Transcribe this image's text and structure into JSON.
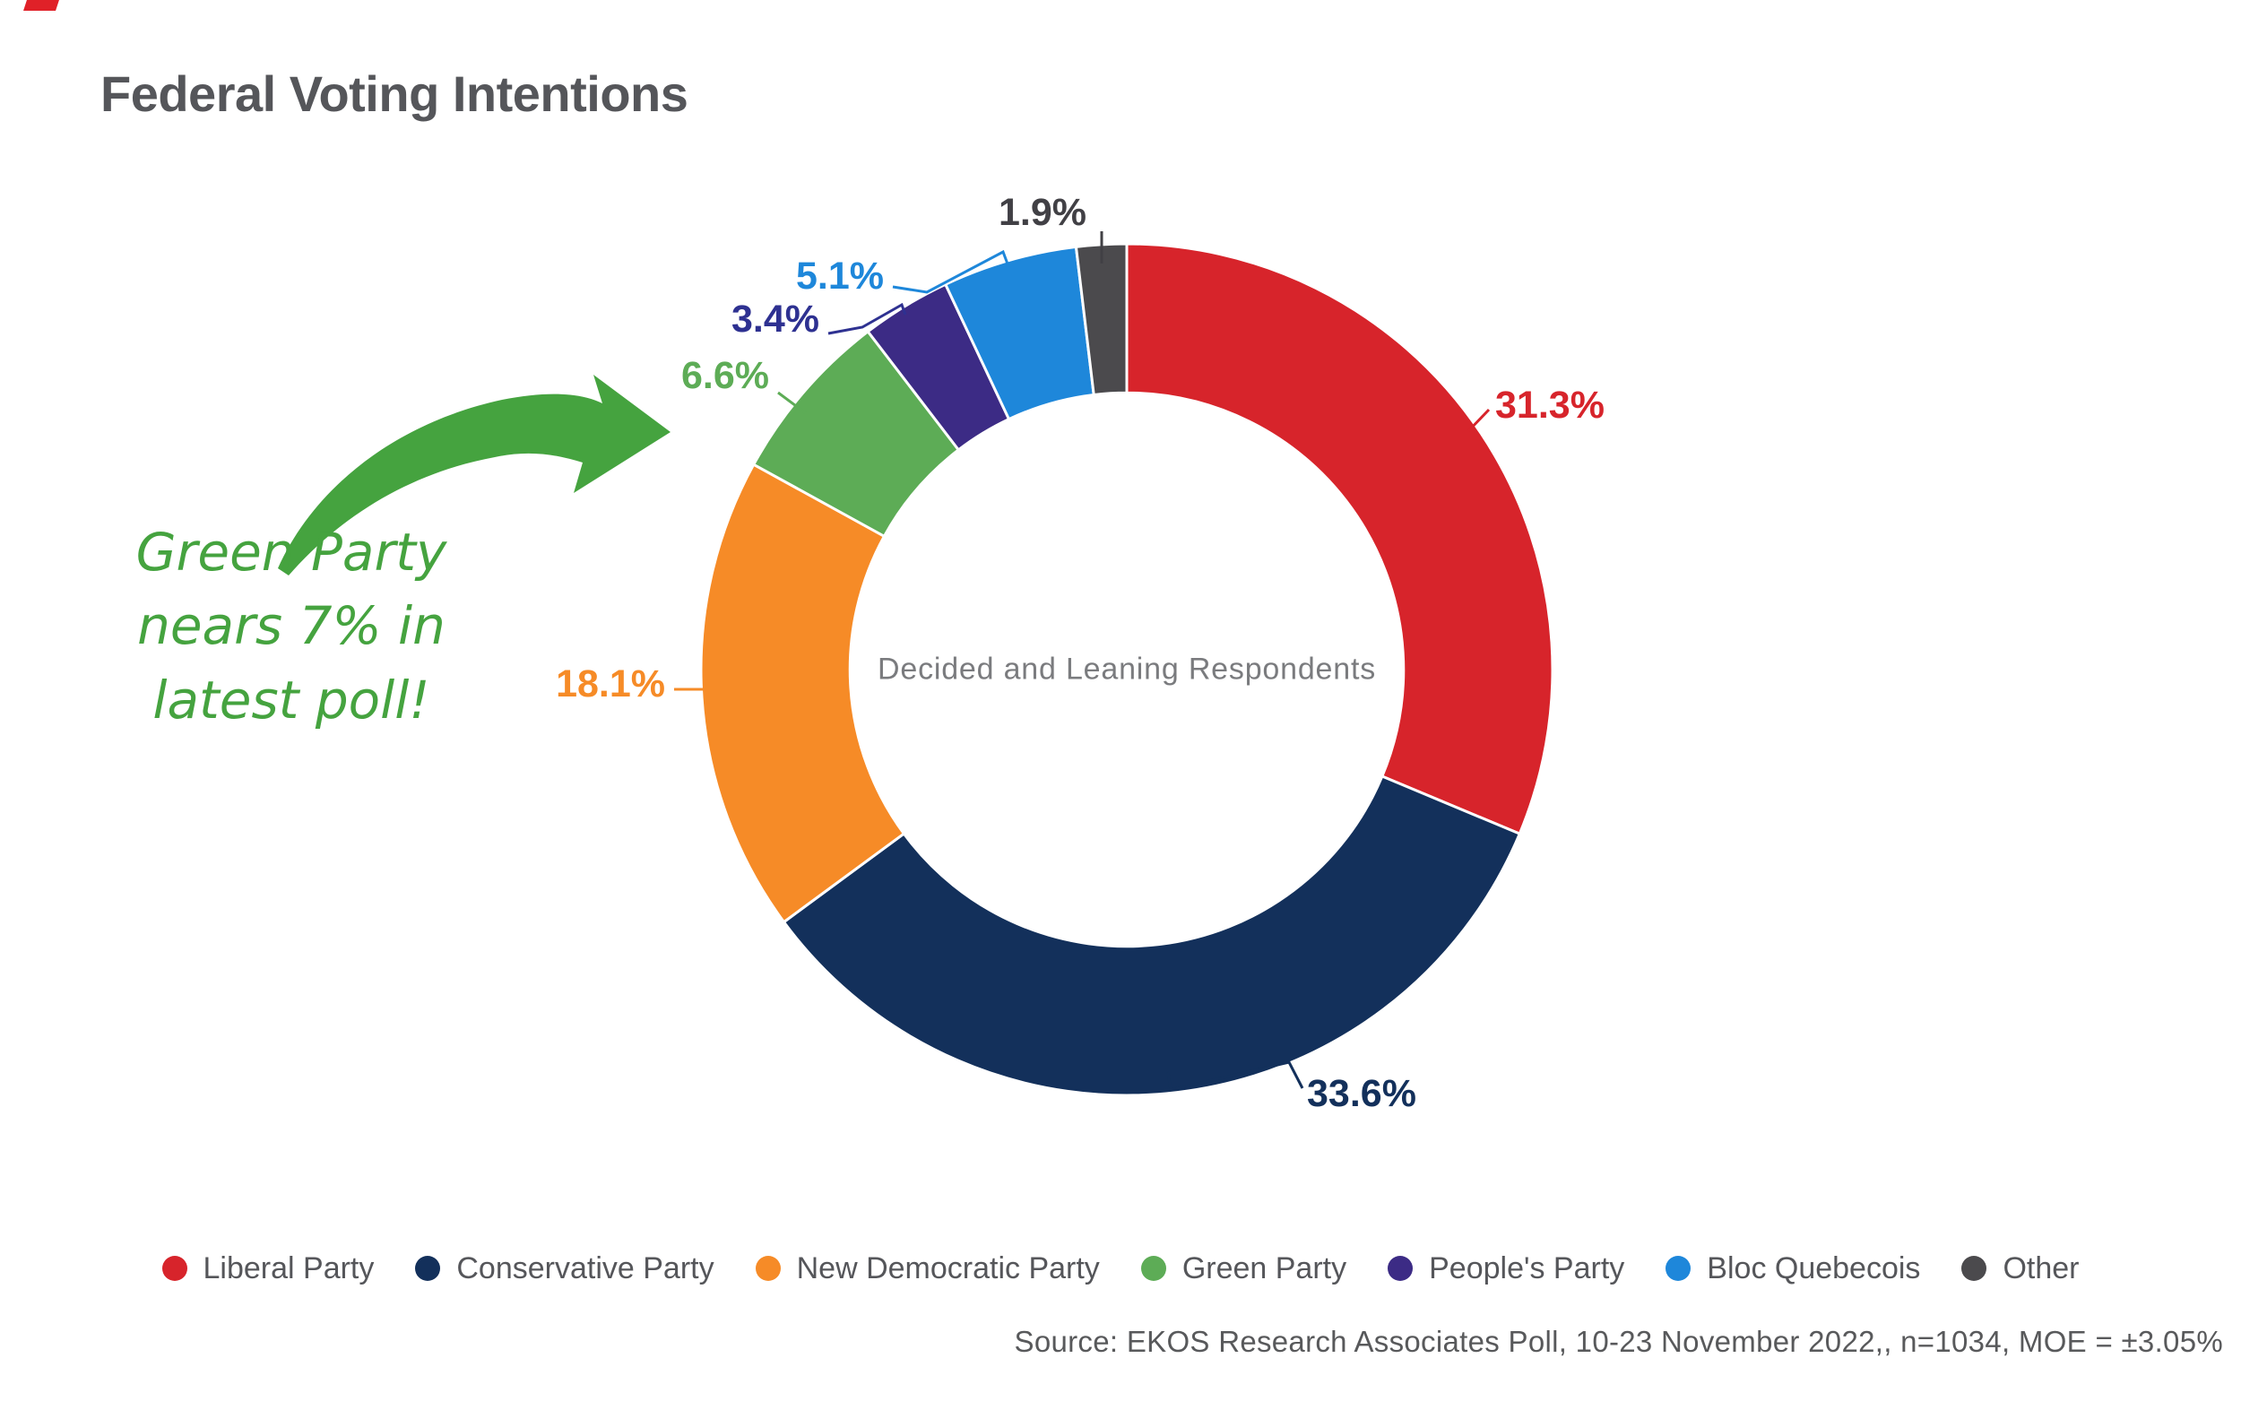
{
  "title": "Federal Voting Intentions",
  "chart_data": {
    "type": "pie",
    "subtype": "donut",
    "center_label": "Decided and Leaning Respondents",
    "start_angle_deg": 0,
    "direction": "clockwise",
    "inner_radius_ratio": 0.65,
    "legend_position": "bottom",
    "series": [
      {
        "label": "Liberal Party",
        "value": 31.3,
        "color": "#d7242b"
      },
      {
        "label": "Conservative Party",
        "value": 33.6,
        "color": "#13305b"
      },
      {
        "label": "New Democratic Party",
        "value": 18.1,
        "color": "#f68b27"
      },
      {
        "label": "Green Party",
        "value": 6.6,
        "color": "#5dac56"
      },
      {
        "label": "People's Party",
        "value": 3.4,
        "color": "#3c2b85",
        "label_color": "#2e3191"
      },
      {
        "label": "Bloc Quebecois",
        "value": 5.1,
        "color": "#1e87da"
      },
      {
        "label": "Other",
        "value": 1.9,
        "color": "#4b4a4d",
        "label_color": "#414045"
      }
    ]
  },
  "annotation": {
    "lines": [
      "Green Party",
      "nears 7% in",
      "latest poll!"
    ],
    "color": "#45a33f",
    "arrow_color": "#45a33f"
  },
  "source": "Source: EKOS Research Associates Poll, 10-23 November 2022,, n=1034, MOE = ±3.05%"
}
